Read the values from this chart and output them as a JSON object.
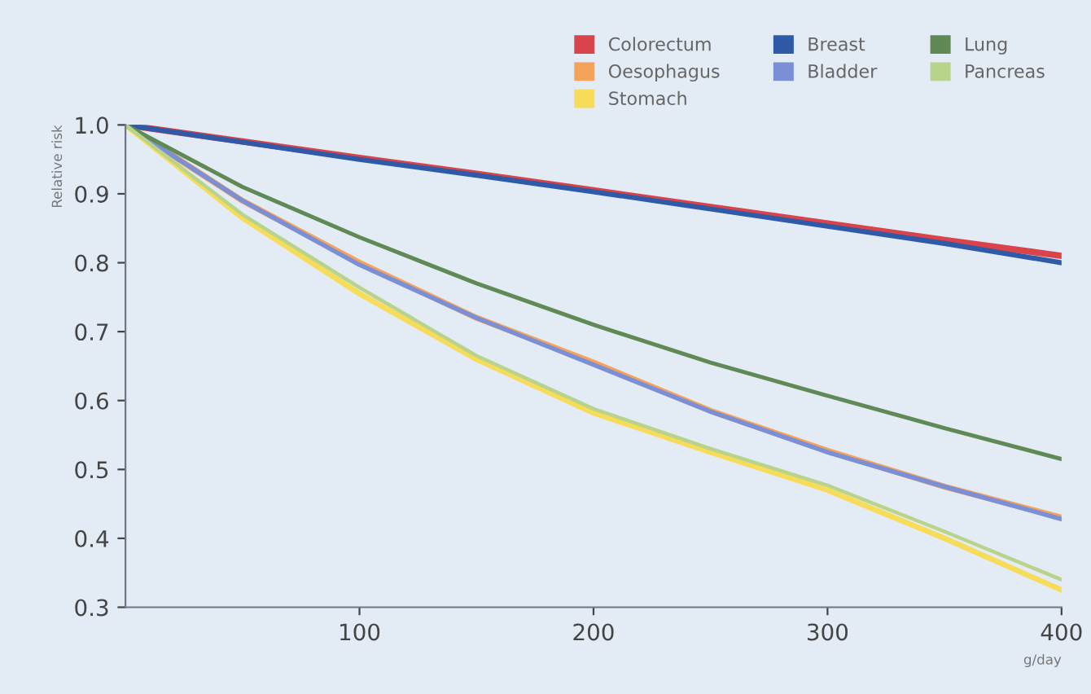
{
  "chart_data": {
    "type": "line",
    "xlabel": "g/day",
    "ylabel": "Relative risk",
    "x": [
      0,
      50,
      100,
      150,
      200,
      250,
      300,
      350,
      400
    ],
    "series": [
      {
        "name": "Colorectum",
        "color": "#d9434a",
        "values": [
          1.0,
          0.976,
          0.952,
          0.929,
          0.905,
          0.881,
          0.857,
          0.833,
          0.81
        ]
      },
      {
        "name": "Oesophagus",
        "color": "#f5a25a",
        "values": [
          1.0,
          0.89,
          0.8,
          0.72,
          0.655,
          0.585,
          0.527,
          0.475,
          0.43
        ]
      },
      {
        "name": "Stomach",
        "color": "#f7dc5a",
        "values": [
          1.0,
          0.865,
          0.755,
          0.66,
          0.582,
          0.525,
          0.47,
          0.4,
          0.325
        ]
      },
      {
        "name": "Breast",
        "color": "#2e5aa8",
        "values": [
          1.0,
          0.975,
          0.95,
          0.927,
          0.903,
          0.878,
          0.853,
          0.828,
          0.8
        ]
      },
      {
        "name": "Bladder",
        "color": "#7b8fd6",
        "values": [
          1.0,
          0.89,
          0.797,
          0.72,
          0.652,
          0.584,
          0.525,
          0.475,
          0.428
        ]
      },
      {
        "name": "Lung",
        "color": "#5f8a55",
        "values": [
          1.0,
          0.91,
          0.837,
          0.77,
          0.71,
          0.655,
          0.607,
          0.56,
          0.515
        ]
      },
      {
        "name": "Pancreas",
        "color": "#b8d48c",
        "values": [
          1.0,
          0.87,
          0.764,
          0.665,
          0.588,
          0.53,
          0.477,
          0.41,
          0.34
        ]
      }
    ],
    "xlim": [
      0,
      400
    ],
    "ylim": [
      0.3,
      1.0
    ],
    "xticks": [
      100,
      200,
      300,
      400
    ],
    "yticks": [
      {
        "value": 0.3,
        "label": "0.3"
      },
      {
        "value": 0.4,
        "label": "0.4"
      },
      {
        "value": 0.5,
        "label": "0.5"
      },
      {
        "value": 0.6,
        "label": "0.6"
      },
      {
        "value": 0.7,
        "label": "0.7"
      },
      {
        "value": 0.8,
        "label": "0.8"
      },
      {
        "value": 0.9,
        "label": "0.9"
      },
      {
        "value": 1.0,
        "label": "1.0"
      }
    ],
    "grid": false,
    "legend": "top right",
    "marker": "none",
    "line_style": "solid"
  }
}
